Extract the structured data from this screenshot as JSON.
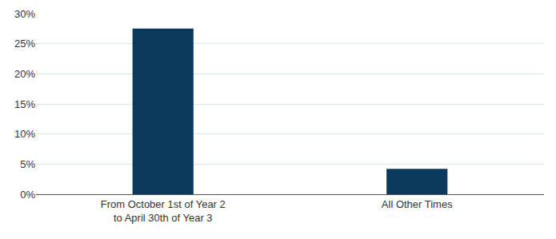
{
  "chart_data": {
    "type": "bar",
    "categories": [
      "From October 1st of Year 2\nto April 30th of Year 3",
      "All Other Times"
    ],
    "values": [
      27.5,
      4.2
    ],
    "color": "#0b3a5d",
    "ylim": [
      0,
      30
    ],
    "yticks": [
      {
        "value": 0,
        "label": "0%"
      },
      {
        "value": 5,
        "label": "5%"
      },
      {
        "value": 10,
        "label": "10%"
      },
      {
        "value": 15,
        "label": "15%"
      },
      {
        "value": 20,
        "label": "20%"
      },
      {
        "value": 25,
        "label": "25%"
      },
      {
        "value": 30,
        "label": "30%"
      }
    ],
    "grid": true
  }
}
